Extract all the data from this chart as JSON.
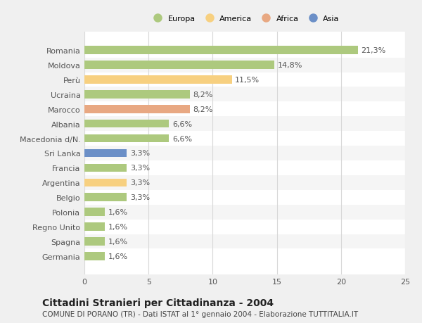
{
  "countries": [
    "Romania",
    "Moldova",
    "Perù",
    "Ucraina",
    "Marocco",
    "Albania",
    "Macedonia d/N.",
    "Sri Lanka",
    "Francia",
    "Argentina",
    "Belgio",
    "Polonia",
    "Regno Unito",
    "Spagna",
    "Germania"
  ],
  "values": [
    21.3,
    14.8,
    11.5,
    8.2,
    8.2,
    6.6,
    6.6,
    3.3,
    3.3,
    3.3,
    3.3,
    1.6,
    1.6,
    1.6,
    1.6
  ],
  "labels": [
    "21,3%",
    "14,8%",
    "11,5%",
    "8,2%",
    "8,2%",
    "6,6%",
    "6,6%",
    "3,3%",
    "3,3%",
    "3,3%",
    "3,3%",
    "1,6%",
    "1,6%",
    "1,6%",
    "1,6%"
  ],
  "colors": [
    "#adc97e",
    "#adc97e",
    "#f7d080",
    "#adc97e",
    "#e8a882",
    "#adc97e",
    "#adc97e",
    "#6b8fc7",
    "#adc97e",
    "#f7d080",
    "#adc97e",
    "#adc97e",
    "#adc97e",
    "#adc97e",
    "#adc97e"
  ],
  "legend_labels": [
    "Europa",
    "America",
    "Africa",
    "Asia"
  ],
  "legend_colors": [
    "#adc97e",
    "#f7d080",
    "#e8a882",
    "#6b8fc7"
  ],
  "title": "Cittadini Stranieri per Cittadinanza - 2004",
  "subtitle": "COMUNE DI PORANO (TR) - Dati ISTAT al 1° gennaio 2004 - Elaborazione TUTTITALIA.IT",
  "xlim": [
    0,
    25
  ],
  "xticks": [
    0,
    5,
    10,
    15,
    20,
    25
  ],
  "figure_bg": "#f0f0f0",
  "plot_bg": "#ffffff",
  "row_alt_color": "#f5f5f5",
  "grid_color": "#d8d8d8",
  "text_color": "#555555",
  "label_fontsize": 8.0,
  "tick_fontsize": 8.0,
  "title_fontsize": 10,
  "subtitle_fontsize": 7.5
}
